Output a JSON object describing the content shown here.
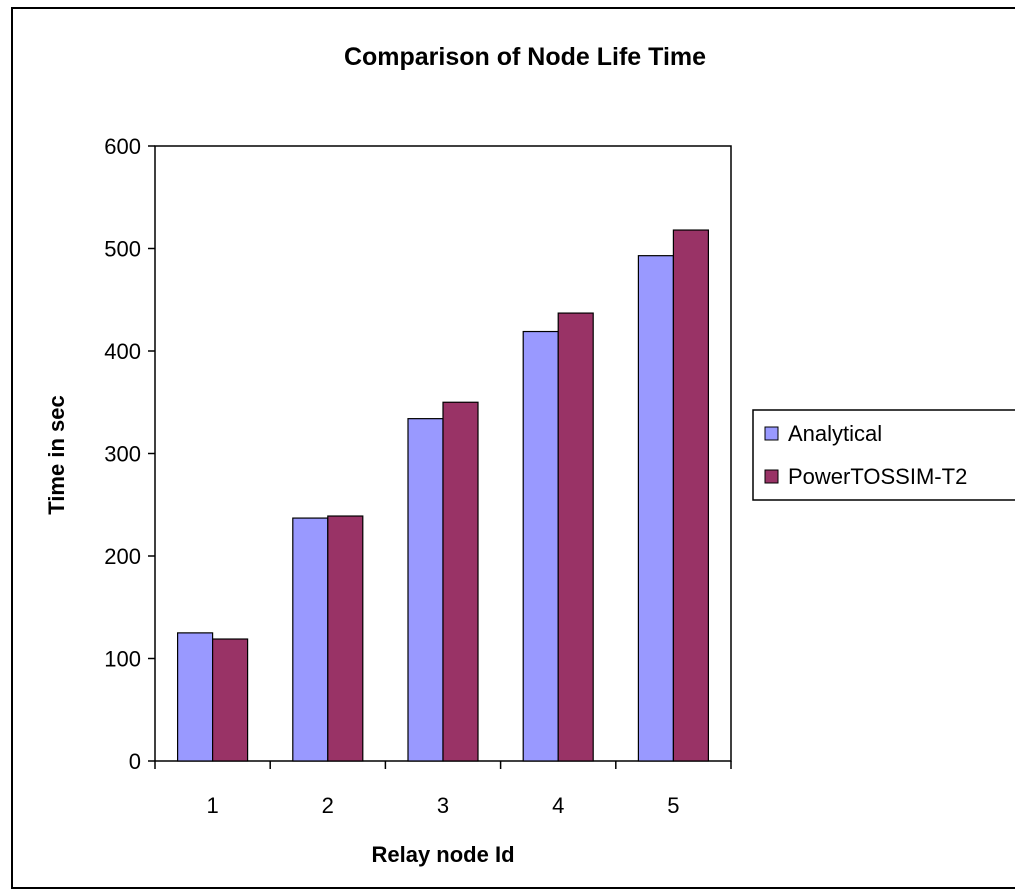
{
  "chart_data": {
    "type": "bar",
    "title": "Comparison of Node Life Time",
    "xlabel": "Relay node Id",
    "ylabel": "Time in sec",
    "categories": [
      "1",
      "2",
      "3",
      "4",
      "5"
    ],
    "series": [
      {
        "name": "Analytical",
        "values": [
          125,
          237,
          334,
          419,
          493
        ],
        "color": "#9999ff"
      },
      {
        "name": "PowerTOSSIM-T2",
        "values": [
          119,
          239,
          350,
          437,
          518
        ],
        "color": "#993366"
      }
    ],
    "ylim": [
      0,
      600
    ],
    "yticks": [
      0,
      100,
      200,
      300,
      400,
      500,
      600
    ],
    "grid": false,
    "legend_position": "right"
  }
}
